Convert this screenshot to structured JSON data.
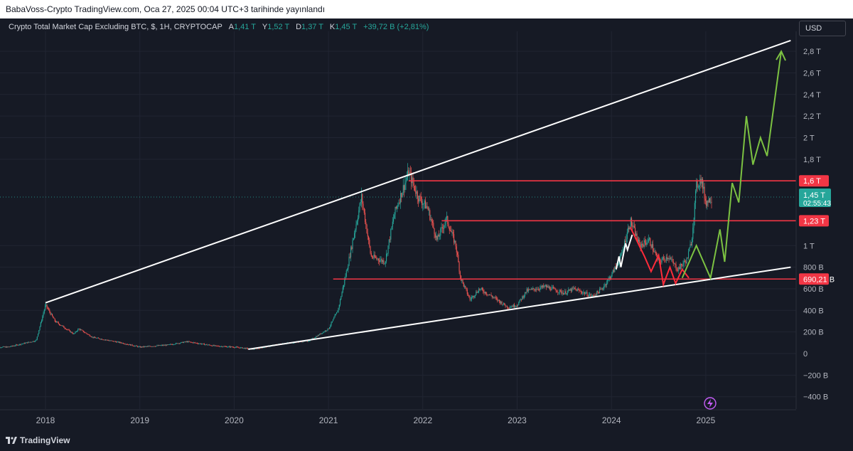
{
  "header": {
    "published_text": "BabaVoss-Crypto TradingView.com, Oca 27, 2025 00:04 UTC+3 tarihinde yayınlandı"
  },
  "legend": {
    "symbol": "Crypto Total Market Cap Excluding BTC, $, 1H, CRYPTOCAP",
    "open_label": "A",
    "open_value": "1,41 T",
    "high_label": "Y",
    "high_value": "1,52 T",
    "low_label": "D",
    "low_value": "1,37 T",
    "close_label": "K",
    "close_value": "1,45 T",
    "change": "+39,72 B (+2,81%)"
  },
  "currency_button": "USD",
  "footer": {
    "brand": "TradingView"
  },
  "colors": {
    "background": "#161a25",
    "up": "#26a69a",
    "down": "#ef5350",
    "level": "#f23645",
    "trend": "#ffffff",
    "projection": "#7cc242",
    "bounce": "#ff2b3a"
  },
  "chart_data": {
    "type": "candlestick",
    "title": "Crypto Total Market Cap Excluding BTC",
    "y_unit": "USD",
    "ylim": [
      -480,
      2900
    ],
    "xlim": [
      "2017-07",
      "2025-12"
    ],
    "grid": true,
    "x_ticks": [
      "2018",
      "2019",
      "2020",
      "2021",
      "2022",
      "2023",
      "2024",
      "2025"
    ],
    "y_ticks": [
      {
        "value": 2800,
        "label": "2,8 T"
      },
      {
        "value": 2600,
        "label": "2,6 T"
      },
      {
        "value": 2400,
        "label": "2,4 T"
      },
      {
        "value": 2200,
        "label": "2,2 T"
      },
      {
        "value": 2000,
        "label": "2 T"
      },
      {
        "value": 1800,
        "label": "1,8 T"
      },
      {
        "value": 1000,
        "label": "1 T"
      },
      {
        "value": 800,
        "label": "800 B"
      },
      {
        "value": 600,
        "label": "600 B"
      },
      {
        "value": 400,
        "label": "400 B"
      },
      {
        "value": 200,
        "label": "200 B"
      },
      {
        "value": 0,
        "label": "0"
      },
      {
        "value": -200,
        "label": "−200 B"
      },
      {
        "value": -400,
        "label": "−400 B"
      }
    ],
    "price_series": [
      [
        2017.6,
        60
      ],
      [
        2017.9,
        120
      ],
      [
        2018.0,
        450
      ],
      [
        2018.1,
        300
      ],
      [
        2018.3,
        180
      ],
      [
        2018.35,
        230
      ],
      [
        2018.5,
        150
      ],
      [
        2018.8,
        100
      ],
      [
        2019.0,
        60
      ],
      [
        2019.3,
        80
      ],
      [
        2019.5,
        110
      ],
      [
        2019.8,
        70
      ],
      [
        2020.0,
        60
      ],
      [
        2020.2,
        40
      ],
      [
        2020.5,
        90
      ],
      [
        2020.8,
        120
      ],
      [
        2021.0,
        230
      ],
      [
        2021.1,
        400
      ],
      [
        2021.2,
        800
      ],
      [
        2021.35,
        1450
      ],
      [
        2021.45,
        900
      ],
      [
        2021.6,
        850
      ],
      [
        2021.7,
        1300
      ],
      [
        2021.85,
        1680
      ],
      [
        2021.95,
        1450
      ],
      [
        2022.05,
        1350
      ],
      [
        2022.15,
        1050
      ],
      [
        2022.25,
        1250
      ],
      [
        2022.35,
        1000
      ],
      [
        2022.4,
        700
      ],
      [
        2022.5,
        500
      ],
      [
        2022.6,
        600
      ],
      [
        2022.75,
        520
      ],
      [
        2022.9,
        430
      ],
      [
        2023.0,
        450
      ],
      [
        2023.1,
        580
      ],
      [
        2023.3,
        620
      ],
      [
        2023.5,
        560
      ],
      [
        2023.6,
        600
      ],
      [
        2023.8,
        530
      ],
      [
        2023.9,
        600
      ],
      [
        2024.0,
        730
      ],
      [
        2024.1,
        900
      ],
      [
        2024.2,
        1230
      ],
      [
        2024.3,
        1000
      ],
      [
        2024.4,
        1050
      ],
      [
        2024.5,
        850
      ],
      [
        2024.6,
        900
      ],
      [
        2024.7,
        780
      ],
      [
        2024.8,
        870
      ],
      [
        2024.85,
        1050
      ],
      [
        2024.9,
        1550
      ],
      [
        2024.95,
        1620
      ],
      [
        2025.0,
        1400
      ],
      [
        2025.07,
        1450
      ]
    ],
    "levels": [
      {
        "value": 1600,
        "label": "1,6 T"
      },
      {
        "value": 1230,
        "label": "1,23 T"
      },
      {
        "value": 690.21,
        "label": "690,21 B"
      }
    ],
    "last_price": {
      "label": "1,45 T",
      "countdown": "02:55:43"
    },
    "trendlines": [
      {
        "from": [
          2018.0,
          470
        ],
        "to": [
          2025.9,
          2900
        ]
      },
      {
        "from": [
          2020.15,
          40
        ],
        "to": [
          2025.9,
          800
        ]
      }
    ],
    "projection_path": [
      [
        2024.75,
        700
      ],
      [
        2024.9,
        1000
      ],
      [
        2025.05,
        700
      ],
      [
        2025.15,
        1150
      ],
      [
        2025.2,
        850
      ],
      [
        2025.28,
        1580
      ],
      [
        2025.35,
        1400
      ],
      [
        2025.43,
        2200
      ],
      [
        2025.5,
        1750
      ],
      [
        2025.58,
        2000
      ],
      [
        2025.65,
        1830
      ],
      [
        2025.8,
        2800
      ]
    ],
    "red_zigzag": [
      [
        2024.2,
        1170
      ],
      [
        2024.35,
        900
      ],
      [
        2024.42,
        760
      ],
      [
        2024.5,
        910
      ],
      [
        2024.55,
        640
      ],
      [
        2024.62,
        800
      ],
      [
        2024.68,
        650
      ],
      [
        2024.75,
        780
      ],
      [
        2024.82,
        700
      ]
    ],
    "white_zigzag": [
      [
        2024.05,
        780
      ],
      [
        2024.08,
        900
      ],
      [
        2024.1,
        800
      ],
      [
        2024.15,
        1020
      ],
      [
        2024.17,
        960
      ],
      [
        2024.22,
        1100
      ]
    ],
    "x_axis_labels": [
      "2018",
      "2019",
      "2020",
      "2021",
      "2022",
      "2023",
      "2024",
      "2025"
    ]
  }
}
